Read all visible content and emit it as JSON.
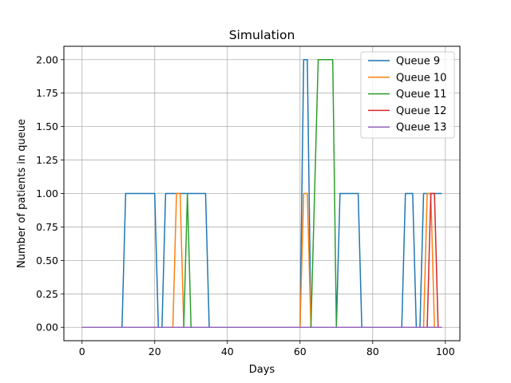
{
  "chart_data": {
    "type": "line",
    "title": "Simulation",
    "xlabel": "Days",
    "ylabel": "Number of patients in queue",
    "xlim": [
      -5,
      104
    ],
    "ylim": [
      -0.1,
      2.1
    ],
    "xticks": [
      0,
      20,
      40,
      60,
      80,
      100
    ],
    "xtick_labels": [
      "0",
      "20",
      "40",
      "60",
      "80",
      "100"
    ],
    "yticks": [
      0,
      0.25,
      0.5,
      0.75,
      1.0,
      1.25,
      1.5,
      1.75,
      2.0
    ],
    "ytick_labels": [
      "0.00",
      "0.25",
      "0.50",
      "0.75",
      "1.00",
      "1.25",
      "1.50",
      "1.75",
      "2.00"
    ],
    "grid": true,
    "legend_position": "top-right",
    "series": [
      {
        "name": "Queue 9",
        "color": "#1f77b4",
        "x": [
          0,
          11,
          12,
          20,
          21,
          22,
          23,
          34,
          35,
          60,
          61,
          62,
          63,
          70,
          71,
          76,
          77,
          88,
          89,
          91,
          92,
          93,
          94,
          99
        ],
        "y": [
          0,
          0,
          1,
          1,
          0,
          0,
          1,
          1,
          0,
          0,
          2,
          2,
          0,
          0,
          1,
          1,
          0,
          0,
          1,
          1,
          0,
          0,
          1,
          1
        ]
      },
      {
        "name": "Queue 10",
        "color": "#ff7f0e",
        "x": [
          0,
          25,
          26,
          27,
          28,
          60,
          61,
          62,
          63,
          94,
          95,
          96,
          97,
          99
        ],
        "y": [
          0,
          0,
          1,
          1,
          0,
          0,
          1,
          1,
          0,
          0,
          1,
          1,
          0,
          0
        ]
      },
      {
        "name": "Queue 11",
        "color": "#2ca02c",
        "x": [
          0,
          28,
          29,
          30,
          63,
          64,
          65,
          69,
          70,
          99
        ],
        "y": [
          0,
          0,
          1,
          0,
          0,
          1,
          2,
          2,
          0,
          0
        ]
      },
      {
        "name": "Queue 12",
        "color": "#d62728",
        "x": [
          0,
          95,
          96,
          97,
          98,
          99
        ],
        "y": [
          0,
          0,
          1,
          1,
          0,
          0
        ]
      },
      {
        "name": "Queue 13",
        "color": "#9467bd",
        "x": [
          0,
          99
        ],
        "y": [
          0,
          0
        ]
      }
    ]
  }
}
